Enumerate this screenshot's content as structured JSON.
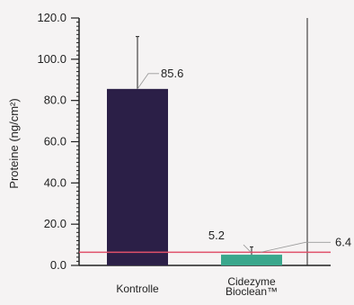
{
  "chart_data": {
    "type": "bar",
    "title": "",
    "xlabel": "",
    "ylabel": "Proteine (ng/cm²)",
    "ylim": [
      0,
      120
    ],
    "y_ticks": [
      "0.0",
      "20.0",
      "40.0",
      "60.0",
      "80.0",
      "100.0",
      "120.0"
    ],
    "y_tick_values": [
      0,
      20,
      40,
      60,
      80,
      100,
      120
    ],
    "grid": false,
    "categories": [
      {
        "lines": [
          "Kontrolle"
        ]
      },
      {
        "lines": [
          "Cidezyme",
          "Bioclean™"
        ]
      }
    ],
    "values": [
      85.6,
      5.2
    ],
    "error_upper": [
      111,
      9
    ],
    "value_labels": [
      "85.6",
      "5.2"
    ],
    "bar_colors": [
      "#2b1f47",
      "#3aa78c"
    ],
    "reference_line": {
      "value": 6.4,
      "label": "6.4",
      "color": "#e0506a"
    }
  }
}
